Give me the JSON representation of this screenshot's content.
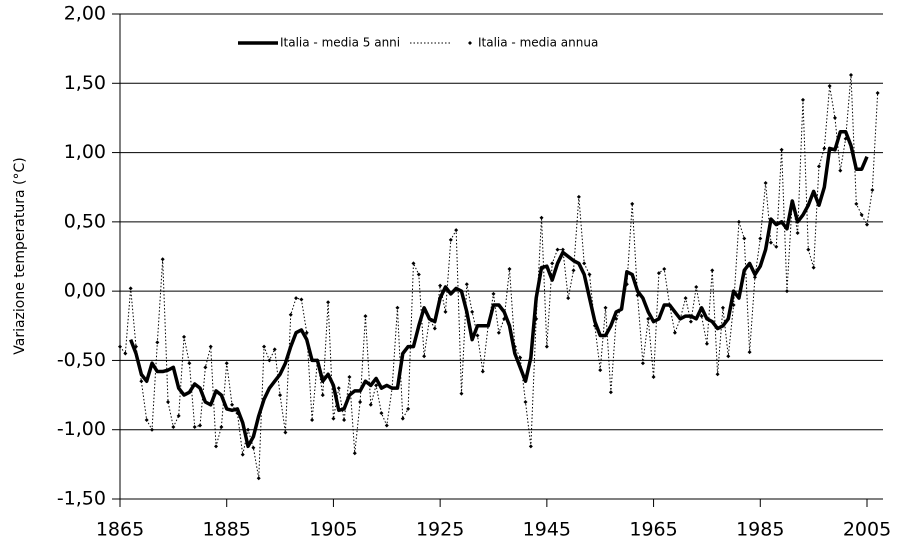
{
  "chart_data": {
    "type": "line",
    "y_label": "Variazione temperatura (°C)",
    "legend": "top",
    "grid": true,
    "xlim": [
      1865,
      2008
    ],
    "xticks": [
      1865,
      1885,
      1905,
      1925,
      1945,
      1965,
      1985,
      2005
    ],
    "ylim": [
      -1.5,
      2
    ],
    "yticks": [
      {
        "value": -1.5,
        "label": "-1,50"
      },
      {
        "value": -1,
        "label": "-1,00"
      },
      {
        "value": -0.5,
        "label": "-0,50"
      },
      {
        "value": 0,
        "label": "0,00"
      },
      {
        "value": 0.5,
        "label": "0,50"
      },
      {
        "value": 1,
        "label": "1,00"
      },
      {
        "value": 1.5,
        "label": "1,50"
      },
      {
        "value": 2,
        "label": "2,00"
      }
    ],
    "series": [
      {
        "name": "Italia - media 5 anni",
        "color": "#000000",
        "style": "solid",
        "x": [
          1867,
          1868,
          1869,
          1870,
          1871,
          1872,
          1873,
          1874,
          1875,
          1876,
          1877,
          1878,
          1879,
          1880,
          1881,
          1882,
          1883,
          1884,
          1885,
          1886,
          1887,
          1888,
          1889,
          1890,
          1891,
          1892,
          1893,
          1894,
          1895,
          1896,
          1897,
          1898,
          1899,
          1900,
          1901,
          1902,
          1903,
          1904,
          1905,
          1906,
          1907,
          1908,
          1909,
          1910,
          1911,
          1912,
          1913,
          1914,
          1915,
          1916,
          1917,
          1918,
          1919,
          1920,
          1921,
          1922,
          1923,
          1924,
          1925,
          1926,
          1927,
          1928,
          1929,
          1930,
          1931,
          1932,
          1933,
          1934,
          1935,
          1936,
          1937,
          1938,
          1939,
          1940,
          1941,
          1942,
          1943,
          1944,
          1945,
          1946,
          1947,
          1948,
          1949,
          1950,
          1951,
          1952,
          1953,
          1954,
          1955,
          1956,
          1957,
          1958,
          1959,
          1960,
          1961,
          1962,
          1963,
          1964,
          1965,
          1966,
          1967,
          1968,
          1969,
          1970,
          1971,
          1972,
          1973,
          1974,
          1975,
          1976,
          1977,
          1978,
          1979,
          1980,
          1981,
          1982,
          1983,
          1984,
          1985,
          1986,
          1987,
          1988,
          1989,
          1990,
          1991,
          1992,
          1993,
          1994,
          1995,
          1996,
          1997,
          1998,
          1999,
          2000,
          2001,
          2002,
          2003,
          2004,
          2005
        ],
        "values": [
          -0.35,
          -0.45,
          -0.6,
          -0.65,
          -0.52,
          -0.58,
          -0.58,
          -0.57,
          -0.55,
          -0.7,
          -0.75,
          -0.73,
          -0.67,
          -0.7,
          -0.8,
          -0.82,
          -0.72,
          -0.75,
          -0.85,
          -0.86,
          -0.85,
          -0.95,
          -1.12,
          -1.05,
          -0.9,
          -0.78,
          -0.7,
          -0.65,
          -0.6,
          -0.52,
          -0.4,
          -0.3,
          -0.28,
          -0.35,
          -0.5,
          -0.5,
          -0.65,
          -0.6,
          -0.68,
          -0.86,
          -0.85,
          -0.75,
          -0.72,
          -0.72,
          -0.65,
          -0.68,
          -0.63,
          -0.7,
          -0.68,
          -0.7,
          -0.7,
          -0.45,
          -0.4,
          -0.4,
          -0.25,
          -0.12,
          -0.2,
          -0.22,
          -0.05,
          0.03,
          -0.02,
          0.02,
          0,
          -0.15,
          -0.35,
          -0.25,
          -0.25,
          -0.25,
          -0.1,
          -0.1,
          -0.15,
          -0.25,
          -0.45,
          -0.55,
          -0.65,
          -0.48,
          -0.05,
          0.17,
          0.18,
          0.08,
          0.2,
          0.28,
          0.25,
          0.22,
          0.2,
          0.12,
          -0.05,
          -0.22,
          -0.32,
          -0.32,
          -0.25,
          -0.15,
          -0.13,
          0.14,
          0.12,
          0,
          -0.05,
          -0.15,
          -0.22,
          -0.2,
          -0.1,
          -0.1,
          -0.15,
          -0.2,
          -0.18,
          -0.18,
          -0.2,
          -0.12,
          -0.2,
          -0.22,
          -0.27,
          -0.25,
          -0.2,
          0,
          -0.05,
          0.15,
          0.2,
          0.12,
          0.18,
          0.3,
          0.52,
          0.48,
          0.5,
          0.45,
          0.65,
          0.5,
          0.55,
          0.62,
          0.72,
          0.62,
          0.75,
          1.03,
          1.02,
          1.15,
          1.15,
          1.05,
          0.88,
          0.88,
          0.97
        ]
      },
      {
        "name": "Italia - media annua",
        "color": "#000000",
        "style": "dotted",
        "x": [
          1865,
          1866,
          1867,
          1868,
          1869,
          1870,
          1871,
          1872,
          1873,
          1874,
          1875,
          1876,
          1877,
          1878,
          1879,
          1880,
          1881,
          1882,
          1883,
          1884,
          1885,
          1886,
          1887,
          1888,
          1889,
          1890,
          1891,
          1892,
          1893,
          1894,
          1895,
          1896,
          1897,
          1898,
          1899,
          1900,
          1901,
          1902,
          1903,
          1904,
          1905,
          1906,
          1907,
          1908,
          1909,
          1910,
          1911,
          1912,
          1913,
          1914,
          1915,
          1916,
          1917,
          1918,
          1919,
          1920,
          1921,
          1922,
          1923,
          1924,
          1925,
          1926,
          1927,
          1928,
          1929,
          1930,
          1931,
          1932,
          1933,
          1934,
          1935,
          1936,
          1937,
          1938,
          1939,
          1940,
          1941,
          1942,
          1943,
          1944,
          1945,
          1946,
          1947,
          1948,
          1949,
          1950,
          1951,
          1952,
          1953,
          1954,
          1955,
          1956,
          1957,
          1958,
          1959,
          1960,
          1961,
          1962,
          1963,
          1964,
          1965,
          1966,
          1967,
          1968,
          1969,
          1970,
          1971,
          1972,
          1973,
          1974,
          1975,
          1976,
          1977,
          1978,
          1979,
          1980,
          1981,
          1982,
          1983,
          1984,
          1985,
          1986,
          1987,
          1988,
          1989,
          1990,
          1991,
          1992,
          1993,
          1994,
          1995,
          1996,
          1997,
          1998,
          1999,
          2000,
          2001,
          2002,
          2003,
          2004,
          2005,
          2006,
          2007
        ],
        "values": [
          -0.4,
          -0.45,
          0.02,
          -0.4,
          -0.65,
          -0.93,
          -1,
          -0.37,
          0.23,
          -0.8,
          -0.98,
          -0.9,
          -0.33,
          -0.52,
          -0.98,
          -0.97,
          -0.55,
          -0.4,
          -1.12,
          -0.98,
          -0.52,
          -0.82,
          -0.88,
          -1.18,
          -1,
          -1.13,
          -1.35,
          -0.4,
          -0.5,
          -0.42,
          -0.75,
          -1.02,
          -0.17,
          -0.05,
          -0.06,
          -0.3,
          -0.93,
          -0.5,
          -0.75,
          -0.08,
          -0.92,
          -0.7,
          -0.93,
          -0.62,
          -1.17,
          -0.8,
          -0.18,
          -0.82,
          -0.68,
          -0.88,
          -0.97,
          -0.7,
          -0.12,
          -0.92,
          -0.85,
          0.2,
          0.12,
          -0.47,
          -0.2,
          -0.27,
          0.04,
          -0.15,
          0.37,
          0.44,
          -0.74,
          0.05,
          -0.15,
          -0.32,
          -0.58,
          -0.25,
          -0.02,
          -0.3,
          -0.2,
          0.16,
          -0.4,
          -0.48,
          -0.8,
          -1.12,
          -0.2,
          0.53,
          -0.4,
          0.2,
          0.3,
          0.3,
          -0.05,
          0.15,
          0.68,
          0.2,
          0.12,
          -0.25,
          -0.57,
          -0.12,
          -0.73,
          -0.2,
          -0.12,
          0.05,
          0.63,
          -0.03,
          -0.52,
          -0.2,
          -0.62,
          0.13,
          0.16,
          -0.1,
          -0.3,
          -0.2,
          -0.05,
          -0.22,
          0.03,
          -0.18,
          -0.38,
          0.15,
          -0.6,
          -0.12,
          -0.47,
          -0.1,
          0.5,
          0.38,
          -0.44,
          0.1,
          0.38,
          0.78,
          0.35,
          0.32,
          1.02,
          0,
          0.65,
          0.42,
          1.38,
          0.3,
          0.17,
          0.9,
          1.03,
          1.48,
          1.25,
          0.87,
          1.1,
          1.56,
          0.63,
          0.55,
          0.48,
          0.73,
          1.43
        ]
      }
    ]
  }
}
